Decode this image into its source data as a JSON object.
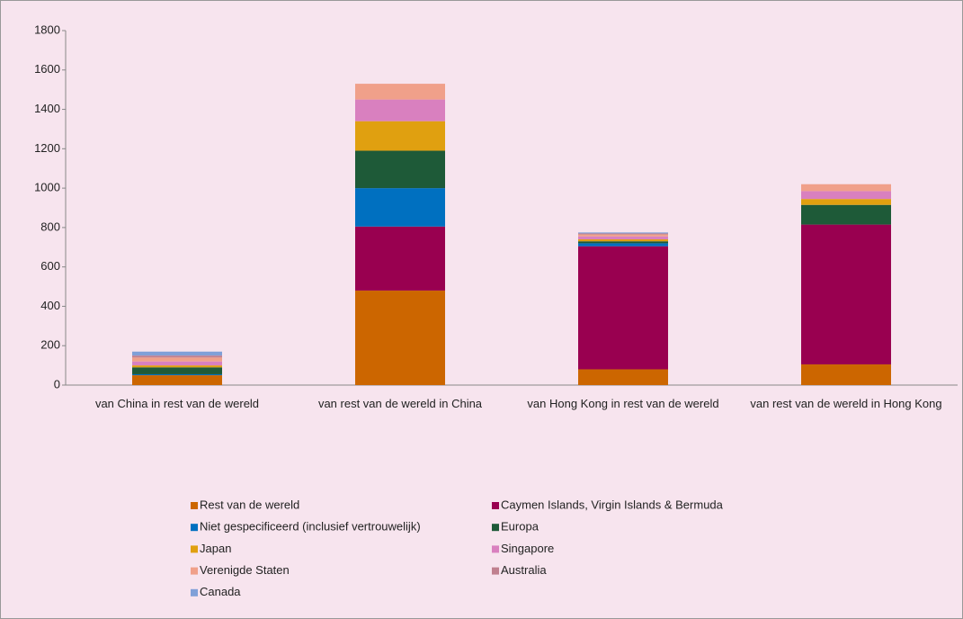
{
  "chart_data": {
    "type": "stacked-bar",
    "categories": [
      "van China in rest van de wereld",
      "van rest van de wereld in China",
      "van Hong Kong in rest van de wereld",
      "van rest van de wereld in Hong Kong"
    ],
    "series": [
      {
        "name": "Rest van de wereld",
        "color": "#cc6600",
        "values": [
          50,
          480,
          80,
          105
        ]
      },
      {
        "name": "Caymen Islands, Virgin Islands & Bermuda",
        "color": "#990050",
        "values": [
          0,
          325,
          625,
          710
        ]
      },
      {
        "name": "Niet gespecificeerd (inclusief vertrouwelijk)",
        "color": "#0070c0",
        "values": [
          5,
          195,
          15,
          0
        ]
      },
      {
        "name": "Europa",
        "color": "#1e5a38",
        "values": [
          35,
          190,
          10,
          100
        ]
      },
      {
        "name": "Japan",
        "color": "#e0a010",
        "values": [
          10,
          150,
          10,
          30
        ]
      },
      {
        "name": "Singapore",
        "color": "#d980bf",
        "values": [
          20,
          110,
          15,
          40
        ]
      },
      {
        "name": "Verenigde Staten",
        "color": "#f0a08a",
        "values": [
          20,
          80,
          10,
          35
        ]
      },
      {
        "name": "Australia",
        "color": "#c0808f",
        "values": [
          10,
          0,
          5,
          0
        ]
      },
      {
        "name": "Canada",
        "color": "#80a0d8",
        "values": [
          20,
          0,
          5,
          0
        ]
      }
    ],
    "ylim": [
      0,
      1800
    ],
    "yticks": [
      0,
      200,
      400,
      600,
      800,
      1000,
      1200,
      1400,
      1600,
      1800
    ],
    "grid": false
  }
}
